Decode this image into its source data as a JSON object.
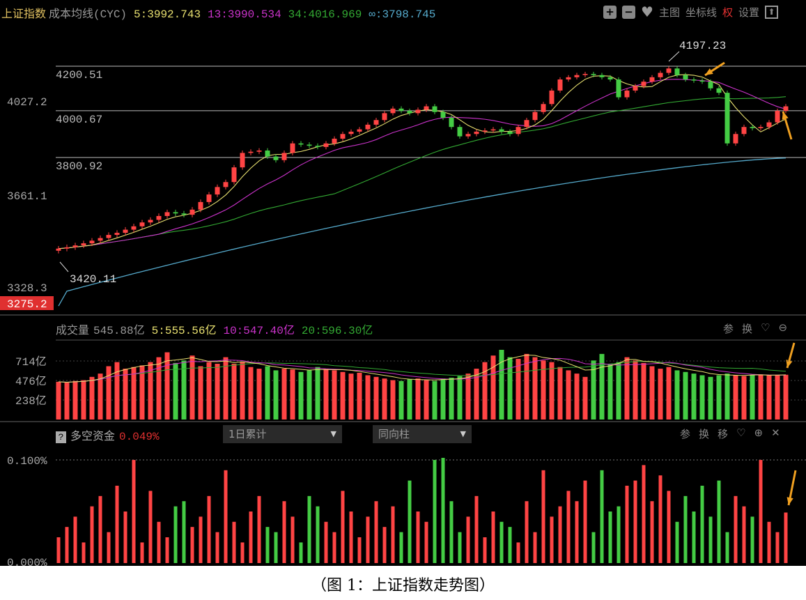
{
  "header": {
    "index": "上证指数",
    "indicator": "成本均线(CYC)",
    "ma5": "5:3992.743",
    "ma13": "13:3990.534",
    "ma34": "34:4016.969",
    "mainf": "∞:3798.745"
  },
  "toolbar": {
    "zoom_in_icon": "plus-icon",
    "zoom_out_icon": "minus-icon",
    "fav_icon": "heart-icon",
    "main": "主图",
    "axis": "坐标线",
    "rights": "权",
    "settings": "设置",
    "export_icon": "arrow-up-icon"
  },
  "price_axis": {
    "labels": [
      "4027.2",
      "3661.1",
      "3328.3"
    ],
    "current": "3275.2"
  },
  "price_levels": [
    "4200.51",
    "4000.67",
    "3800.92"
  ],
  "annotations": {
    "high": "4197.23",
    "low": "3420.11"
  },
  "volume": {
    "title": "成交量",
    "value": "545.88亿",
    "ma5": "5:555.56亿",
    "ma10": "10:547.40亿",
    "ma20": "20:596.30亿",
    "axis": [
      "714亿",
      "476亿",
      "238亿"
    ],
    "tools": [
      "参",
      "换"
    ]
  },
  "fund": {
    "title": "多空资金",
    "value": "0.049%",
    "select1": "1日累计",
    "select2": "同向柱",
    "axis": [
      "0.100%",
      "0.000%"
    ],
    "tools": [
      "参",
      "换",
      "移"
    ]
  },
  "caption": "（图 1：上证指数走势图）",
  "colors": {
    "up": "#ff4444",
    "down": "#44cc44",
    "ma5": "#e8e070",
    "ma13": "#cc33cc",
    "ma34": "#33aa33",
    "cyc": "#55aacc",
    "arrow": "#f0a020"
  },
  "chart_data": {
    "type": "candlestick",
    "title": "上证指数",
    "yscale": "log",
    "closes": [
      3440,
      3445,
      3452,
      3460,
      3470,
      3480,
      3492,
      3500,
      3512,
      3525,
      3540,
      3550,
      3565,
      3580,
      3575,
      3570,
      3590,
      3620,
      3650,
      3680,
      3700,
      3760,
      3820,
      3825,
      3830,
      3805,
      3790,
      3820,
      3860,
      3855,
      3850,
      3845,
      3860,
      3880,
      3900,
      3910,
      3920,
      3940,
      3960,
      3990,
      4010,
      4000,
      3990,
      4005,
      4020,
      3995,
      3970,
      3930,
      3890,
      3900,
      3910,
      3915,
      3920,
      3910,
      3900,
      3930,
      3960,
      3995,
      4030,
      4090,
      4140,
      4150,
      4160,
      4165,
      4160,
      4150,
      4140,
      4060,
      4090,
      4110,
      4130,
      4150,
      4170,
      4190,
      4160,
      4140,
      4135,
      4130,
      4100,
      4080,
      3860,
      3900,
      3930,
      3925,
      3930,
      3950,
      4000,
      4020
    ],
    "cyc_range": [
      3275.2,
      3798.745
    ],
    "volumes": [
      460,
      450,
      470,
      480,
      520,
      560,
      650,
      700,
      620,
      640,
      660,
      700,
      760,
      820,
      690,
      720,
      780,
      650,
      700,
      680,
      760,
      680,
      700,
      640,
      620,
      650,
      600,
      620,
      610,
      580,
      600,
      640,
      620,
      600,
      580,
      560,
      570,
      540,
      520,
      500,
      480,
      470,
      490,
      500,
      480,
      470,
      500,
      510,
      530,
      560,
      620,
      700,
      780,
      850,
      760,
      740,
      800,
      760,
      720,
      700,
      640,
      600,
      560,
      520,
      720,
      800,
      680,
      700,
      760,
      720,
      690,
      650,
      620,
      640,
      600,
      580,
      560,
      540,
      520,
      540,
      560,
      540,
      530,
      545,
      550,
      540,
      545,
      546
    ],
    "fund_pct": [
      0.025,
      0.035,
      0.045,
      0.02,
      0.055,
      0.065,
      0.03,
      0.075,
      0.05,
      0.1,
      0.02,
      0.07,
      0.04,
      0.025,
      0.055,
      0.06,
      0.035,
      0.045,
      0.065,
      0.03,
      0.09,
      0.04,
      0.02,
      0.05,
      0.065,
      0.035,
      0.03,
      0.06,
      0.045,
      0.02,
      0.065,
      0.055,
      0.04,
      0.03,
      0.07,
      0.05,
      0.025,
      0.045,
      0.06,
      0.035,
      0.055,
      0.03,
      0.08,
      0.05,
      0.04,
      0.1,
      0.102,
      0.06,
      0.03,
      0.045,
      0.065,
      0.025,
      0.05,
      0.04,
      0.035,
      0.02,
      0.06,
      0.03,
      0.09,
      0.045,
      0.055,
      0.07,
      0.06,
      0.08,
      0.03,
      0.09,
      0.05,
      0.055,
      0.075,
      0.08,
      0.095,
      0.06,
      0.085,
      0.07,
      0.04,
      0.065,
      0.05,
      0.075,
      0.045,
      0.08,
      0.03,
      0.065,
      0.055,
      0.045,
      0.1,
      0.04,
      0.03,
      0.049
    ]
  }
}
